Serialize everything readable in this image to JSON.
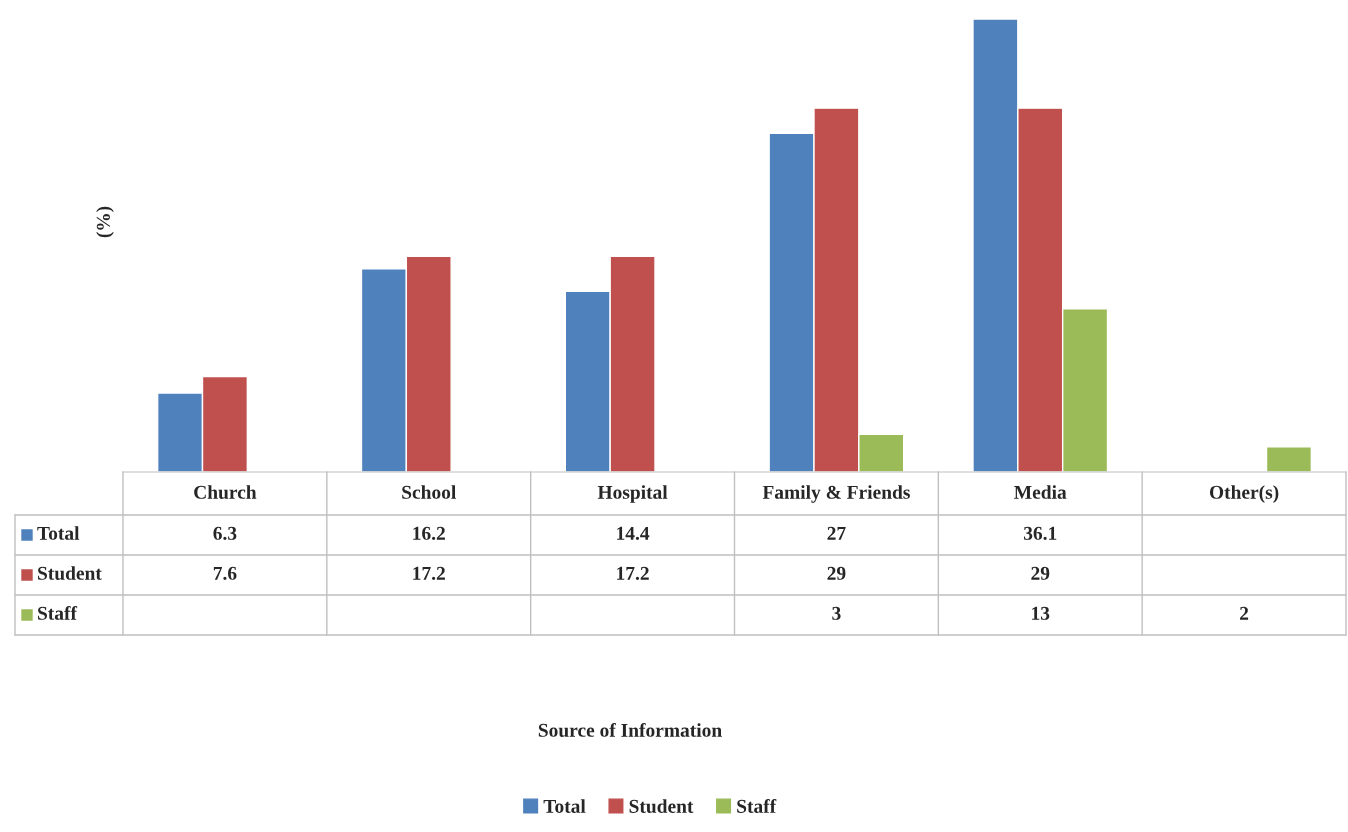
{
  "chart_data": {
    "type": "bar",
    "annotations": [
      "Source of Information"
    ],
    "ylabel": "(%)",
    "categories": [
      "Church",
      "School",
      "Hospital",
      "Family & Friends",
      "Media",
      "Other(s)"
    ],
    "series": [
      {
        "name": "Total",
        "color": "#4f81bd",
        "values": [
          6.3,
          16.2,
          14.4,
          27,
          36.1,
          null
        ]
      },
      {
        "name": "Student",
        "color": "#c0504d",
        "values": [
          7.6,
          17.2,
          17.2,
          29,
          29,
          null
        ]
      },
      {
        "name": "Staff",
        "color": "#9bbb59",
        "values": [
          null,
          null,
          null,
          3,
          13,
          2
        ]
      }
    ],
    "data_labels": true,
    "legend": "bottom"
  }
}
